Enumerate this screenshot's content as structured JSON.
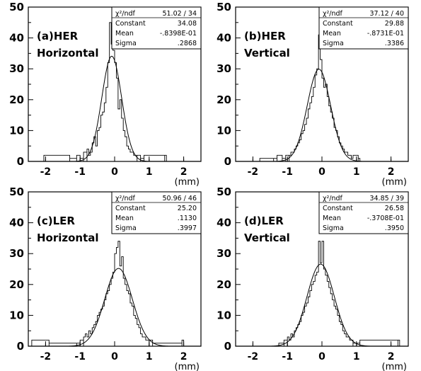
{
  "chart_data": [
    {
      "type": "histogram",
      "title_line1": "(a)HER",
      "title_line2": "Horizontal",
      "xlabel": "(mm)",
      "xlim": [
        -2.5,
        2.5
      ],
      "ylim": [
        0,
        50
      ],
      "xticks": [
        -2,
        -1,
        0,
        1,
        2
      ],
      "yticks": [
        0,
        10,
        20,
        30,
        40,
        50
      ],
      "bin_width": 0.05,
      "stats": [
        {
          "label": "χ²/ndf",
          "value": "51.02   /   34"
        },
        {
          "label": "Constant",
          "value": "34.08"
        },
        {
          "label": "Mean",
          "value": "-.8398E-01"
        },
        {
          "label": "Sigma",
          "value": ".2868"
        }
      ],
      "fit": {
        "constant": 34.08,
        "mean": -0.08398,
        "sigma": 0.2868
      },
      "bins": [
        {
          "x": -2.05,
          "y": 2
        },
        {
          "x": -1.3,
          "y": 1
        },
        {
          "x": -1.1,
          "y": 2
        },
        {
          "x": -1.0,
          "y": 1
        },
        {
          "x": -0.9,
          "y": 3
        },
        {
          "x": -0.8,
          "y": 4
        },
        {
          "x": -0.75,
          "y": 2
        },
        {
          "x": -0.7,
          "y": 3
        },
        {
          "x": -0.65,
          "y": 6
        },
        {
          "x": -0.6,
          "y": 8
        },
        {
          "x": -0.55,
          "y": 5
        },
        {
          "x": -0.5,
          "y": 10
        },
        {
          "x": -0.45,
          "y": 11
        },
        {
          "x": -0.4,
          "y": 15
        },
        {
          "x": -0.35,
          "y": 16
        },
        {
          "x": -0.3,
          "y": 19
        },
        {
          "x": -0.25,
          "y": 24
        },
        {
          "x": -0.2,
          "y": 32
        },
        {
          "x": -0.15,
          "y": 45
        },
        {
          "x": -0.1,
          "y": 38
        },
        {
          "x": -0.05,
          "y": 36
        },
        {
          "x": 0.0,
          "y": 32
        },
        {
          "x": 0.05,
          "y": 27
        },
        {
          "x": 0.1,
          "y": 17
        },
        {
          "x": 0.15,
          "y": 20
        },
        {
          "x": 0.2,
          "y": 14
        },
        {
          "x": 0.25,
          "y": 10
        },
        {
          "x": 0.3,
          "y": 8
        },
        {
          "x": 0.35,
          "y": 5
        },
        {
          "x": 0.4,
          "y": 4
        },
        {
          "x": 0.45,
          "y": 3
        },
        {
          "x": 0.5,
          "y": 3
        },
        {
          "x": 0.55,
          "y": 2
        },
        {
          "x": 0.65,
          "y": 2
        },
        {
          "x": 0.75,
          "y": 1
        },
        {
          "x": 0.85,
          "y": 2
        },
        {
          "x": 1.45,
          "y": 2
        }
      ]
    },
    {
      "type": "histogram",
      "title_line1": "(b)HER",
      "title_line2": "Vertical",
      "xlabel": "(mm)",
      "xlim": [
        -2.5,
        2.5
      ],
      "ylim": [
        0,
        50
      ],
      "xticks": [
        -2,
        -1,
        0,
        1,
        2
      ],
      "yticks": [
        0,
        10,
        20,
        30,
        40,
        50
      ],
      "bin_width": 0.05,
      "stats": [
        {
          "label": "χ²/ndf",
          "value": "37.12   /   40"
        },
        {
          "label": "Constant",
          "value": "29.88"
        },
        {
          "label": "Mean",
          "value": "-.8731E-01"
        },
        {
          "label": "Sigma",
          "value": ".3386"
        }
      ],
      "fit": {
        "constant": 29.88,
        "mean": -0.08731,
        "sigma": 0.3386
      },
      "bins": [
        {
          "x": -1.8,
          "y": 1
        },
        {
          "x": -1.4,
          "y": 1
        },
        {
          "x": -1.3,
          "y": 2
        },
        {
          "x": -1.15,
          "y": 1
        },
        {
          "x": -1.05,
          "y": 2
        },
        {
          "x": -0.95,
          "y": 2
        },
        {
          "x": -0.9,
          "y": 3
        },
        {
          "x": -0.85,
          "y": 3
        },
        {
          "x": -0.8,
          "y": 4
        },
        {
          "x": -0.75,
          "y": 5
        },
        {
          "x": -0.7,
          "y": 6
        },
        {
          "x": -0.65,
          "y": 7
        },
        {
          "x": -0.6,
          "y": 9
        },
        {
          "x": -0.55,
          "y": 10
        },
        {
          "x": -0.5,
          "y": 12
        },
        {
          "x": -0.45,
          "y": 14
        },
        {
          "x": -0.4,
          "y": 17
        },
        {
          "x": -0.35,
          "y": 19
        },
        {
          "x": -0.3,
          "y": 21
        },
        {
          "x": -0.25,
          "y": 24
        },
        {
          "x": -0.2,
          "y": 28
        },
        {
          "x": -0.15,
          "y": 30
        },
        {
          "x": -0.1,
          "y": 41
        },
        {
          "x": -0.05,
          "y": 33
        },
        {
          "x": 0.0,
          "y": 27
        },
        {
          "x": 0.05,
          "y": 24
        },
        {
          "x": 0.1,
          "y": 25
        },
        {
          "x": 0.15,
          "y": 21
        },
        {
          "x": 0.2,
          "y": 18
        },
        {
          "x": 0.25,
          "y": 16
        },
        {
          "x": 0.3,
          "y": 14
        },
        {
          "x": 0.35,
          "y": 11
        },
        {
          "x": 0.4,
          "y": 10
        },
        {
          "x": 0.45,
          "y": 8
        },
        {
          "x": 0.5,
          "y": 6
        },
        {
          "x": 0.55,
          "y": 5
        },
        {
          "x": 0.6,
          "y": 4
        },
        {
          "x": 0.65,
          "y": 3
        },
        {
          "x": 0.7,
          "y": 3
        },
        {
          "x": 0.75,
          "y": 2
        },
        {
          "x": 0.8,
          "y": 2
        },
        {
          "x": 0.85,
          "y": 1
        },
        {
          "x": 0.9,
          "y": 2
        },
        {
          "x": 1.05,
          "y": 1
        }
      ]
    },
    {
      "type": "histogram",
      "title_line1": "(c)LER",
      "title_line2": "Horizontal",
      "xlabel": "(mm)",
      "xlim": [
        -2.5,
        2.5
      ],
      "ylim": [
        0,
        50
      ],
      "xticks": [
        -2,
        -1,
        0,
        1,
        2
      ],
      "yticks": [
        0,
        10,
        20,
        30,
        40,
        50
      ],
      "bin_width": 0.05,
      "stats": [
        {
          "label": "χ²/ndf",
          "value": "50.96   /   46"
        },
        {
          "label": "Constant",
          "value": "25.20"
        },
        {
          "label": "Mean",
          "value": ".1130"
        },
        {
          "label": "Sigma",
          "value": ".3997"
        }
      ],
      "fit": {
        "constant": 25.2,
        "mean": 0.113,
        "sigma": 0.3997
      },
      "bins": [
        {
          "x": -2.4,
          "y": 2
        },
        {
          "x": -1.9,
          "y": 1
        },
        {
          "x": -1.1,
          "y": 1
        },
        {
          "x": -1.0,
          "y": 2
        },
        {
          "x": -0.9,
          "y": 3
        },
        {
          "x": -0.85,
          "y": 4
        },
        {
          "x": -0.8,
          "y": 3
        },
        {
          "x": -0.75,
          "y": 5
        },
        {
          "x": -0.7,
          "y": 4
        },
        {
          "x": -0.65,
          "y": 6
        },
        {
          "x": -0.6,
          "y": 7
        },
        {
          "x": -0.55,
          "y": 8
        },
        {
          "x": -0.5,
          "y": 10
        },
        {
          "x": -0.45,
          "y": 11
        },
        {
          "x": -0.4,
          "y": 12
        },
        {
          "x": -0.35,
          "y": 13
        },
        {
          "x": -0.3,
          "y": 15
        },
        {
          "x": -0.25,
          "y": 17
        },
        {
          "x": -0.2,
          "y": 18
        },
        {
          "x": -0.15,
          "y": 20
        },
        {
          "x": -0.1,
          "y": 22
        },
        {
          "x": -0.05,
          "y": 24
        },
        {
          "x": 0.0,
          "y": 30
        },
        {
          "x": 0.05,
          "y": 32
        },
        {
          "x": 0.1,
          "y": 34
        },
        {
          "x": 0.15,
          "y": 26
        },
        {
          "x": 0.2,
          "y": 29
        },
        {
          "x": 0.25,
          "y": 22
        },
        {
          "x": 0.3,
          "y": 20
        },
        {
          "x": 0.35,
          "y": 18
        },
        {
          "x": 0.4,
          "y": 17
        },
        {
          "x": 0.45,
          "y": 14
        },
        {
          "x": 0.5,
          "y": 13
        },
        {
          "x": 0.55,
          "y": 10
        },
        {
          "x": 0.6,
          "y": 9
        },
        {
          "x": 0.65,
          "y": 7
        },
        {
          "x": 0.7,
          "y": 6
        },
        {
          "x": 0.75,
          "y": 4
        },
        {
          "x": 0.8,
          "y": 3
        },
        {
          "x": 0.85,
          "y": 3
        },
        {
          "x": 0.9,
          "y": 2
        },
        {
          "x": 1.0,
          "y": 2
        },
        {
          "x": 1.1,
          "y": 1
        },
        {
          "x": 1.95,
          "y": 2
        }
      ]
    },
    {
      "type": "histogram",
      "title_line1": "(d)LER",
      "title_line2": "Vertical",
      "xlabel": "(mm)",
      "xlim": [
        -2.5,
        2.5
      ],
      "ylim": [
        0,
        50
      ],
      "xticks": [
        -2,
        -1,
        0,
        1,
        2
      ],
      "yticks": [
        0,
        10,
        20,
        30,
        40,
        50
      ],
      "bin_width": 0.05,
      "stats": [
        {
          "label": "χ²/ndf",
          "value": "34.85   /   39"
        },
        {
          "label": "Constant",
          "value": "26.58"
        },
        {
          "label": "Mean",
          "value": "-.3708E-01"
        },
        {
          "label": "Sigma",
          "value": ".3950"
        }
      ],
      "fit": {
        "constant": 26.58,
        "mean": -0.03708,
        "sigma": 0.395
      },
      "bins": [
        {
          "x": -1.25,
          "y": 1
        },
        {
          "x": -1.1,
          "y": 2
        },
        {
          "x": -1.0,
          "y": 3
        },
        {
          "x": -0.95,
          "y": 2
        },
        {
          "x": -0.9,
          "y": 4
        },
        {
          "x": -0.85,
          "y": 3
        },
        {
          "x": -0.8,
          "y": 5
        },
        {
          "x": -0.75,
          "y": 6
        },
        {
          "x": -0.7,
          "y": 7
        },
        {
          "x": -0.65,
          "y": 8
        },
        {
          "x": -0.6,
          "y": 10
        },
        {
          "x": -0.55,
          "y": 11
        },
        {
          "x": -0.5,
          "y": 13
        },
        {
          "x": -0.45,
          "y": 14
        },
        {
          "x": -0.4,
          "y": 16
        },
        {
          "x": -0.35,
          "y": 18
        },
        {
          "x": -0.3,
          "y": 20
        },
        {
          "x": -0.25,
          "y": 21
        },
        {
          "x": -0.2,
          "y": 23
        },
        {
          "x": -0.15,
          "y": 24
        },
        {
          "x": -0.1,
          "y": 34
        },
        {
          "x": -0.05,
          "y": 27
        },
        {
          "x": 0.0,
          "y": 34
        },
        {
          "x": 0.05,
          "y": 25
        },
        {
          "x": 0.1,
          "y": 23
        },
        {
          "x": 0.15,
          "y": 21
        },
        {
          "x": 0.2,
          "y": 19
        },
        {
          "x": 0.25,
          "y": 17
        },
        {
          "x": 0.3,
          "y": 15
        },
        {
          "x": 0.35,
          "y": 13
        },
        {
          "x": 0.4,
          "y": 12
        },
        {
          "x": 0.45,
          "y": 10
        },
        {
          "x": 0.5,
          "y": 8
        },
        {
          "x": 0.55,
          "y": 7
        },
        {
          "x": 0.6,
          "y": 5
        },
        {
          "x": 0.65,
          "y": 4
        },
        {
          "x": 0.7,
          "y": 3
        },
        {
          "x": 0.75,
          "y": 3
        },
        {
          "x": 0.8,
          "y": 2
        },
        {
          "x": 0.9,
          "y": 1
        },
        {
          "x": 1.1,
          "y": 2
        },
        {
          "x": 2.2,
          "y": 2
        }
      ]
    }
  ]
}
